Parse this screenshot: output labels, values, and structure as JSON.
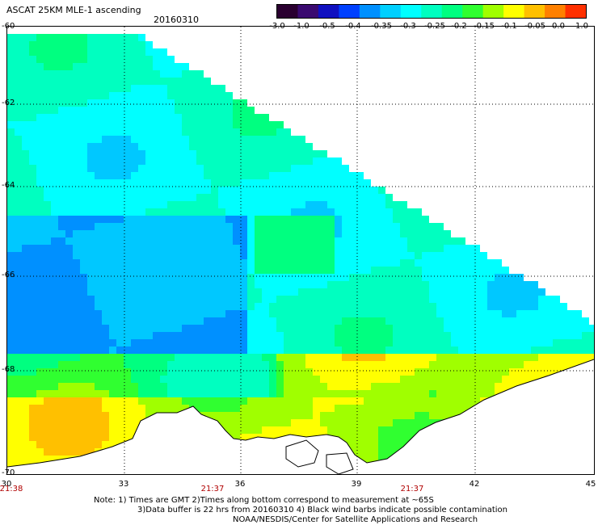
{
  "title": "ASCAT 25KM MLE-1 ascending",
  "date": "20160310",
  "colorbar": {
    "colors": [
      "#2a0030",
      "#3a0a70",
      "#1010c0",
      "#0040ff",
      "#0090ff",
      "#00d0ff",
      "#00ffff",
      "#00ffc0",
      "#00ff80",
      "#30ff30",
      "#a0ff00",
      "#ffff00",
      "#ffc000",
      "#ff8000",
      "#ff3000"
    ],
    "tick_labels": [
      "-3.0",
      "-1.0",
      "-0.5",
      "-0.4",
      "-0.35",
      "-0.3",
      "-0.25",
      "-0.2",
      "-0.15",
      "-0.1",
      "-0.05",
      "0.0",
      "1.0"
    ]
  },
  "latitude_labels": [
    "-60",
    "-62",
    "-64",
    "-66",
    "-68",
    "-70"
  ],
  "longitude_labels": [
    "30",
    "33",
    "36",
    "39",
    "42",
    "45"
  ],
  "time_labels": [
    "21:38",
    "21:37",
    "21:37"
  ],
  "notes": [
    "Note: 1) Times are GMT 2)Times along bottom correspond to measurement at ~65S",
    "3)Data buffer is 22 hrs from 20160310 4) Black wind barbs indicate possible contamination",
    "NOAA/NESDIS/Center for Satellite Applications and Research"
  ]
}
